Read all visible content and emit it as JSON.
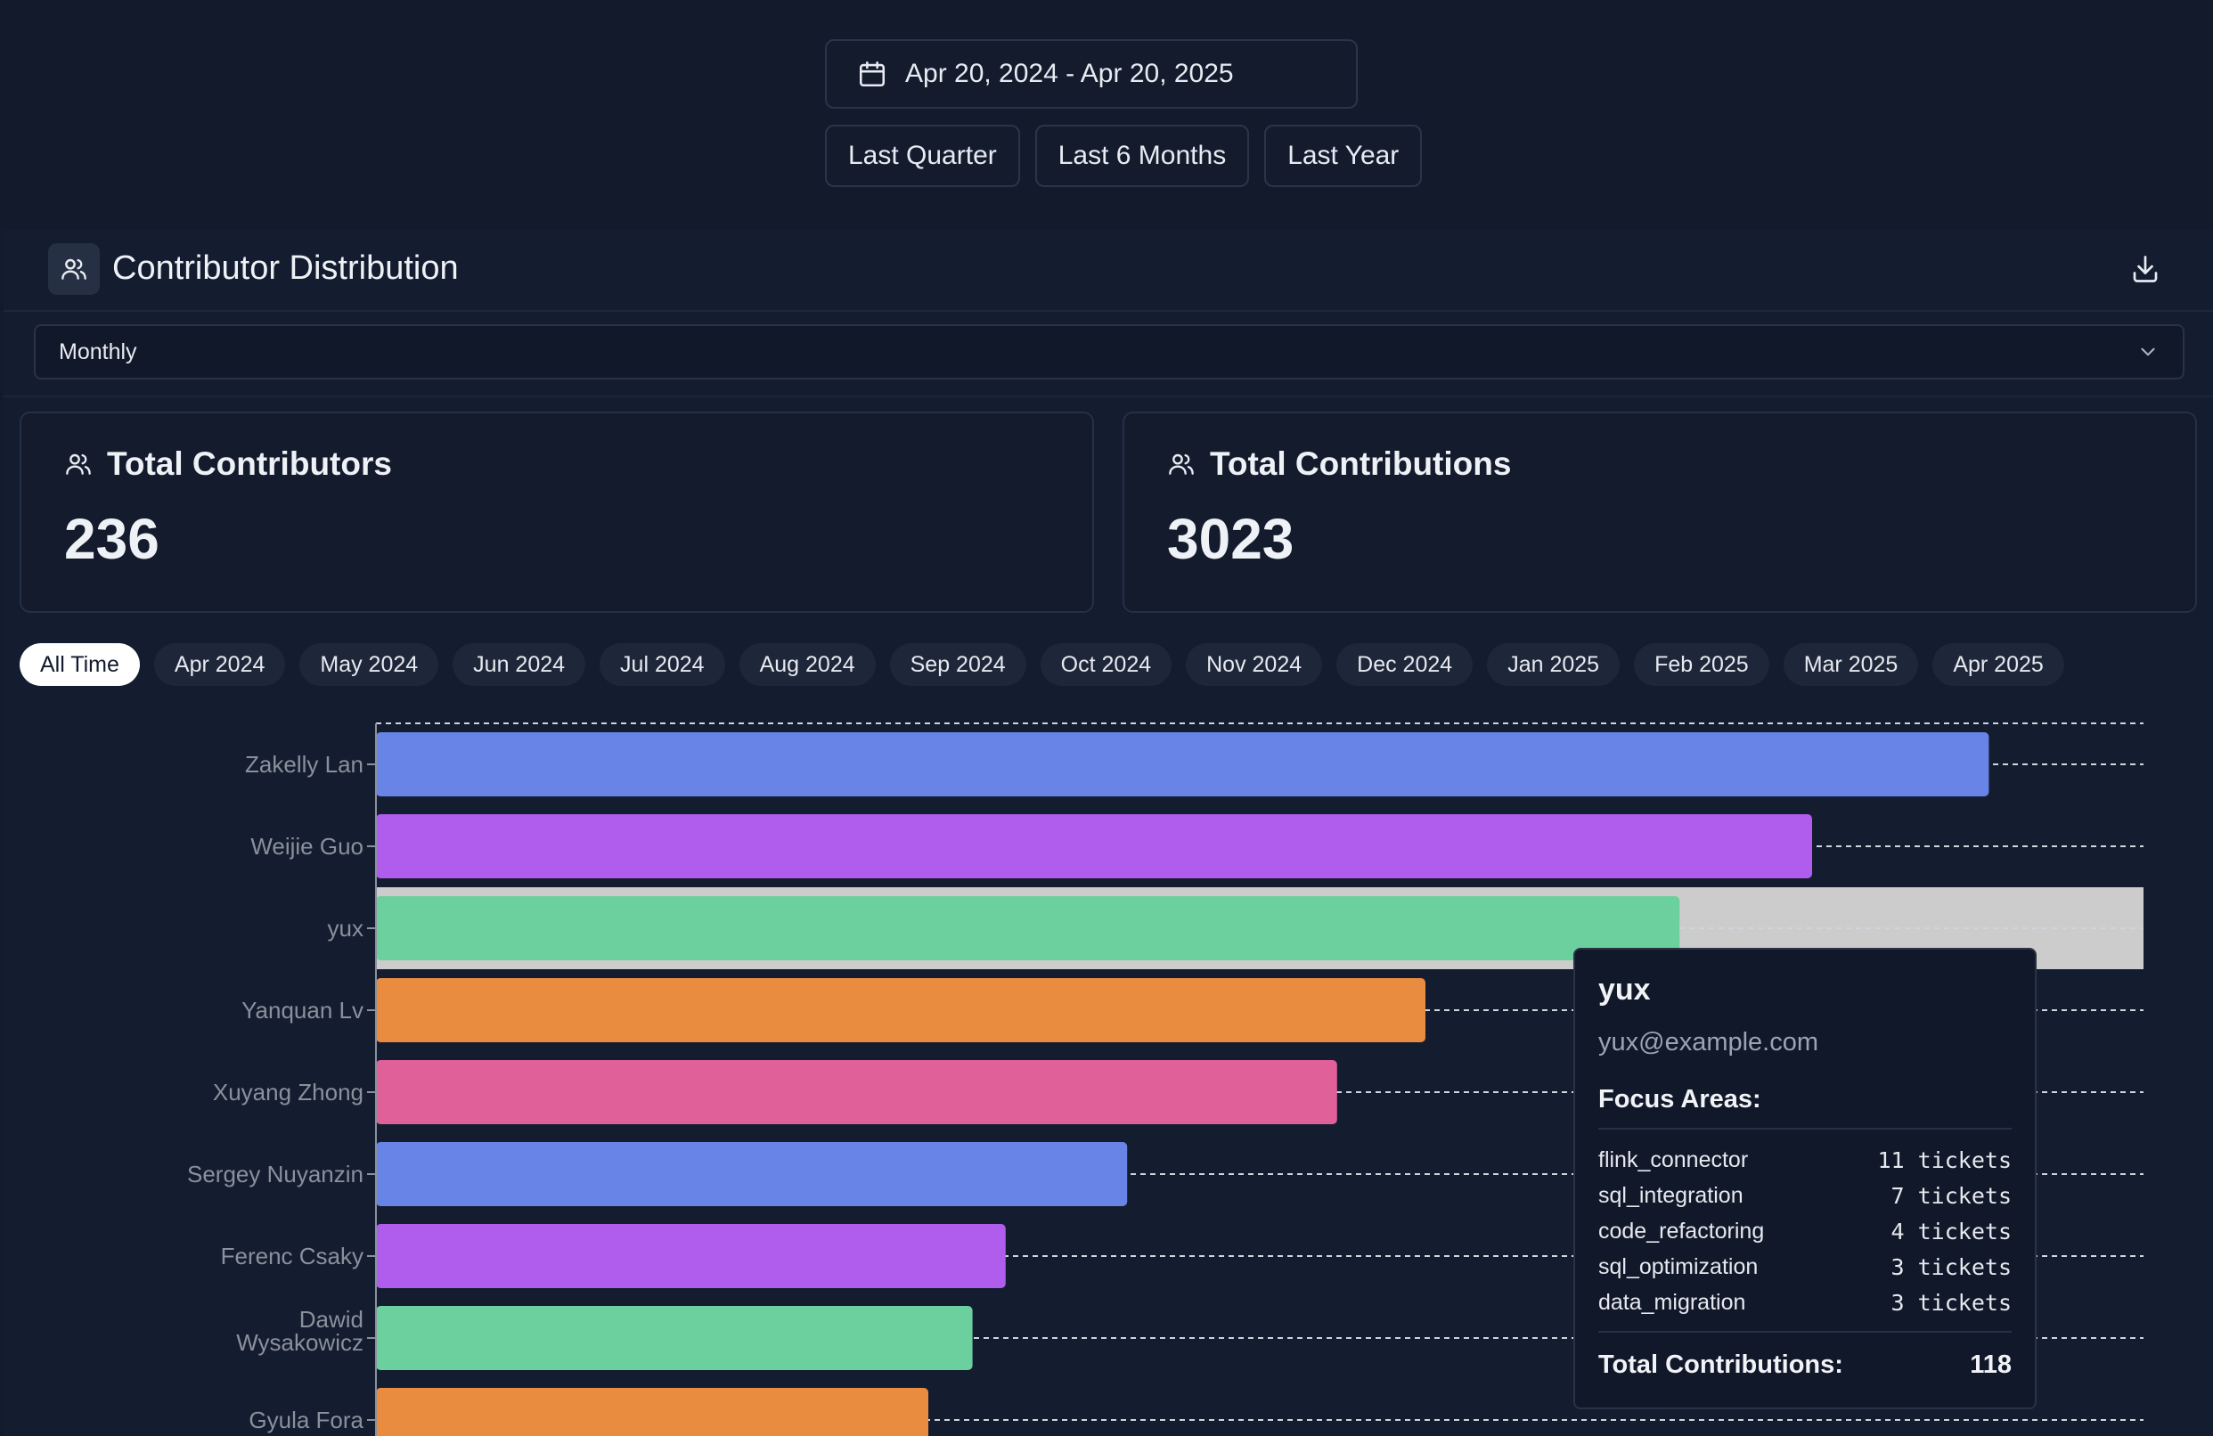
{
  "date_range": {
    "label": "Apr 20, 2024 - Apr 20, 2025"
  },
  "quick_ranges": [
    "Last Quarter",
    "Last 6 Months",
    "Last Year"
  ],
  "panel": {
    "title": "Contributor Distribution"
  },
  "granularity": {
    "selected": "Monthly"
  },
  "stats": {
    "contributors": {
      "title": "Total Contributors",
      "value": "236"
    },
    "contributions": {
      "title": "Total Contributions",
      "value": "3023"
    }
  },
  "month_filters": [
    "All Time",
    "Apr 2024",
    "May 2024",
    "Jun 2024",
    "Jul 2024",
    "Aug 2024",
    "Sep 2024",
    "Oct 2024",
    "Nov 2024",
    "Dec 2024",
    "Jan 2025",
    "Feb 2025",
    "Mar 2025",
    "Apr 2025"
  ],
  "active_month": "All Time",
  "chart_data": {
    "type": "bar",
    "orientation": "horizontal",
    "categories": [
      "Zakelly Lan",
      "Weijie Guo",
      "yux",
      "Yanquan Lv",
      "Xuyang Zhong",
      "Sergey Nuyanzin",
      "Ferenc Csaky",
      "Dawid Wysakowicz",
      "Gyula Fora"
    ],
    "values": [
      146,
      130,
      118,
      95,
      87,
      68,
      57,
      54,
      50
    ],
    "xlim": [
      0,
      160
    ],
    "grid": true,
    "highlighted": "yux",
    "colors": [
      "#6784e6",
      "#b05ced",
      "#6bd09e",
      "#e98c40",
      "#e0609a",
      "#6784e6",
      "#b05ced",
      "#6bd09e",
      "#e98c40"
    ]
  },
  "tooltip": {
    "name": "yux",
    "email": "yux@example.com",
    "focus_title": "Focus Areas:",
    "areas": [
      {
        "name": "flink_connector",
        "count": "11 tickets"
      },
      {
        "name": "sql_integration",
        "count": "7 tickets"
      },
      {
        "name": "code_refactoring",
        "count": "4 tickets"
      },
      {
        "name": "sql_optimization",
        "count": "3 tickets"
      },
      {
        "name": "data_migration",
        "count": "3 tickets"
      }
    ],
    "total_label": "Total Contributions:",
    "total_value": "118"
  }
}
